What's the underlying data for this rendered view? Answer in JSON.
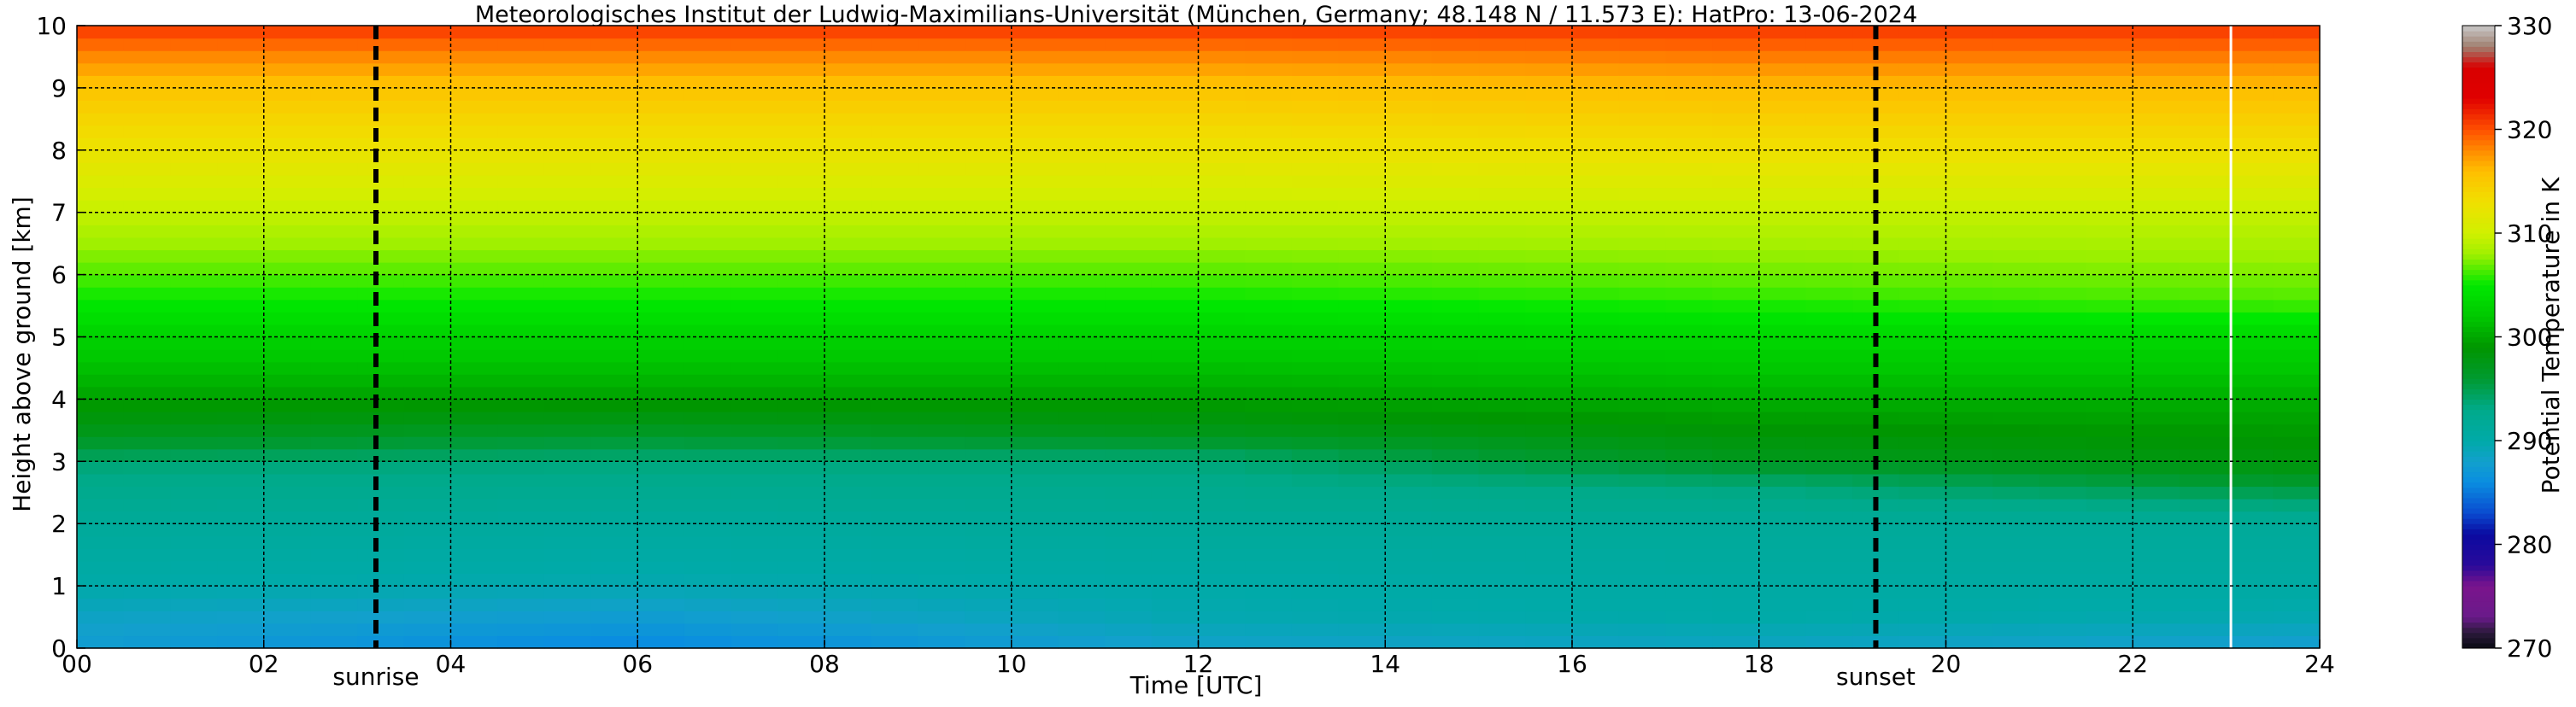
{
  "chart_data": {
    "type": "heatmap",
    "title": "Meteorologisches Institut der Ludwig-Maximilians-Universität (München, Germany; 48.148 N / 11.573 E):    HatPro: 13-06-2024",
    "xlabel": "Time [UTC]",
    "ylabel": "Height above ground [km]",
    "colorbar_label": "Potential Temperature in K",
    "xlim": [
      0,
      24
    ],
    "ylim": [
      0,
      10
    ],
    "clim": [
      270,
      330
    ],
    "x_ticks": [
      0,
      2,
      4,
      6,
      8,
      10,
      12,
      14,
      16,
      18,
      20,
      22,
      24
    ],
    "x_tick_labels": [
      "00",
      "02",
      "04",
      "06",
      "08",
      "10",
      "12",
      "14",
      "16",
      "18",
      "20",
      "22",
      "24"
    ],
    "y_ticks": [
      0,
      1,
      2,
      3,
      4,
      5,
      6,
      7,
      8,
      9,
      10
    ],
    "y_tick_labels": [
      "0",
      "1",
      "2",
      "3",
      "4",
      "5",
      "6",
      "7",
      "8",
      "9",
      "10"
    ],
    "colorbar_ticks": [
      270,
      280,
      290,
      300,
      310,
      320,
      330
    ],
    "colorbar_tick_labels": [
      "270",
      "280",
      "290",
      "300",
      "310",
      "320",
      "330"
    ],
    "grid": true,
    "events": [
      {
        "label": "sunrise",
        "time": 3.2
      },
      {
        "label": "sunset",
        "time": 19.25
      }
    ],
    "missing_data_times": [
      23.05
    ],
    "colormap": [
      {
        "value": 270,
        "color": "#0a0a14"
      },
      {
        "value": 271.5,
        "color": "#2a1a3a"
      },
      {
        "value": 273,
        "color": "#6a1a8a"
      },
      {
        "value": 276,
        "color": "#7a148c"
      },
      {
        "value": 278,
        "color": "#2a0a9a"
      },
      {
        "value": 281,
        "color": "#0a0aa0"
      },
      {
        "value": 283,
        "color": "#0a4ad0"
      },
      {
        "value": 286,
        "color": "#0a8ee0"
      },
      {
        "value": 288,
        "color": "#12a0cc"
      },
      {
        "value": 290,
        "color": "#00aaa8"
      },
      {
        "value": 293,
        "color": "#00aa8a"
      },
      {
        "value": 296,
        "color": "#009a30"
      },
      {
        "value": 299,
        "color": "#009600"
      },
      {
        "value": 302,
        "color": "#00c800"
      },
      {
        "value": 305,
        "color": "#00e800"
      },
      {
        "value": 308,
        "color": "#a0f000"
      },
      {
        "value": 310,
        "color": "#d0f000"
      },
      {
        "value": 313,
        "color": "#f0e000"
      },
      {
        "value": 316,
        "color": "#ffbe00"
      },
      {
        "value": 318,
        "color": "#ff8a00"
      },
      {
        "value": 320,
        "color": "#ff5000"
      },
      {
        "value": 323,
        "color": "#e00000"
      },
      {
        "value": 326,
        "color": "#d80000"
      },
      {
        "value": 328,
        "color": "#a08070"
      },
      {
        "value": 330,
        "color": "#c8c8c8"
      }
    ],
    "profiles": [
      {
        "time": 0,
        "heights": [
          0,
          0.5,
          1,
          2,
          2.9,
          3.5,
          4.2,
          5,
          6,
          7,
          8,
          9,
          9.6,
          10
        ],
        "values": [
          287.5,
          288.5,
          290,
          291.5,
          293.5,
          297.5,
          300.5,
          303,
          306.5,
          309.5,
          312.5,
          315.5,
          318.5,
          321
        ]
      },
      {
        "time": 6,
        "heights": [
          0,
          0.5,
          1,
          2,
          3,
          3.6,
          4.2,
          5,
          6,
          7,
          8,
          9,
          9.6,
          10
        ],
        "values": [
          285.5,
          287.5,
          289.5,
          291,
          293.5,
          297.5,
          300.5,
          303,
          306.5,
          309.5,
          312.5,
          315.5,
          318.5,
          321
        ]
      },
      {
        "time": 12,
        "heights": [
          0,
          0.5,
          1,
          2,
          3,
          3.5,
          4.2,
          5,
          6,
          7,
          8,
          9,
          9.6,
          10
        ],
        "values": [
          288,
          289.5,
          290,
          291.5,
          293.5,
          297.5,
          300.5,
          303,
          306.5,
          309.5,
          312.5,
          315.5,
          318.5,
          321
        ]
      },
      {
        "time": 18,
        "heights": [
          0,
          0.5,
          1,
          2,
          2.6,
          3.1,
          4,
          5,
          5.8,
          7,
          8,
          9,
          9.6,
          10
        ],
        "values": [
          288.5,
          290,
          290.5,
          291.5,
          293.5,
          297.5,
          300.5,
          303.5,
          306.5,
          309.5,
          313,
          316,
          319,
          321
        ]
      },
      {
        "time": 24,
        "heights": [
          0,
          0.5,
          1,
          2,
          2.3,
          2.9,
          4,
          5,
          5.6,
          7,
          8,
          9,
          9.6,
          10
        ],
        "values": [
          287.5,
          289.5,
          290.5,
          291.5,
          293.5,
          298,
          300.5,
          303.5,
          306.5,
          309.5,
          313,
          316,
          319,
          321
        ]
      }
    ]
  }
}
